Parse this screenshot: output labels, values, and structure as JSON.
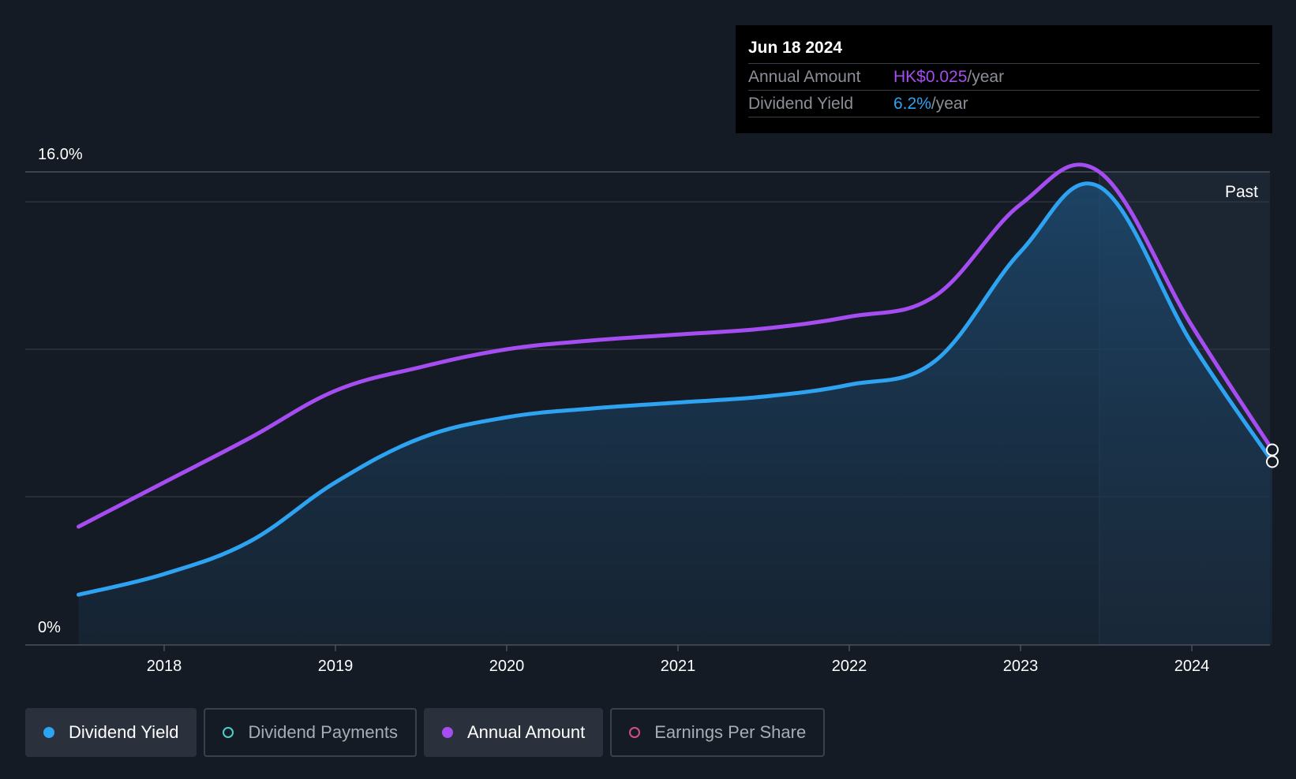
{
  "chart_data": {
    "type": "line",
    "x_unit": "year",
    "y_unit": "%",
    "ylim": [
      0,
      16
    ],
    "y_ticks_labeled": [
      "16.0%",
      "0%"
    ],
    "xlim": [
      2017.5,
      2024.47
    ],
    "x_ticks": [
      "2018",
      "2019",
      "2020",
      "2021",
      "2022",
      "2023",
      "2024"
    ],
    "past_label": "Past",
    "past_region_start": 2023.46,
    "grid": true,
    "series": [
      {
        "name": "Annual Amount",
        "color": "#a64df2",
        "x": [
          2017.5,
          2018.0,
          2018.5,
          2019.0,
          2019.5,
          2020.0,
          2020.5,
          2021.0,
          2021.5,
          2022.0,
          2022.5,
          2023.0,
          2023.46,
          2024.0,
          2024.47
        ],
        "y": [
          4.0,
          5.5,
          7.0,
          8.6,
          9.4,
          10.0,
          10.3,
          10.5,
          10.7,
          11.1,
          11.8,
          14.9,
          16.0,
          10.8,
          6.6
        ]
      },
      {
        "name": "Dividend Yield",
        "color": "#2ea3f2",
        "fill": true,
        "x": [
          2017.5,
          2018.0,
          2018.5,
          2019.0,
          2019.5,
          2020.0,
          2020.5,
          2021.0,
          2021.5,
          2022.0,
          2022.5,
          2023.0,
          2023.46,
          2024.0,
          2024.47
        ],
        "y": [
          1.7,
          2.4,
          3.5,
          5.5,
          7.0,
          7.7,
          8.0,
          8.2,
          8.4,
          8.8,
          9.6,
          13.3,
          15.5,
          10.2,
          6.2
        ]
      }
    ]
  },
  "tooltip": {
    "date": "Jun 18 2024",
    "rows": [
      {
        "label": "Annual Amount",
        "value": "HK$0.025",
        "unit": "/year"
      },
      {
        "label": "Dividend Yield",
        "value": "6.2%",
        "unit": "/year"
      }
    ]
  },
  "legend": [
    {
      "label": "Dividend Yield",
      "color": "#2ea3f2",
      "filled": true,
      "active": true
    },
    {
      "label": "Dividend Payments",
      "color": "#4ad0c6",
      "filled": false,
      "active": false
    },
    {
      "label": "Annual Amount",
      "color": "#a64df2",
      "filled": true,
      "active": true
    },
    {
      "label": "Earnings Per Share",
      "color": "#d64d8c",
      "filled": false,
      "active": false
    }
  ]
}
